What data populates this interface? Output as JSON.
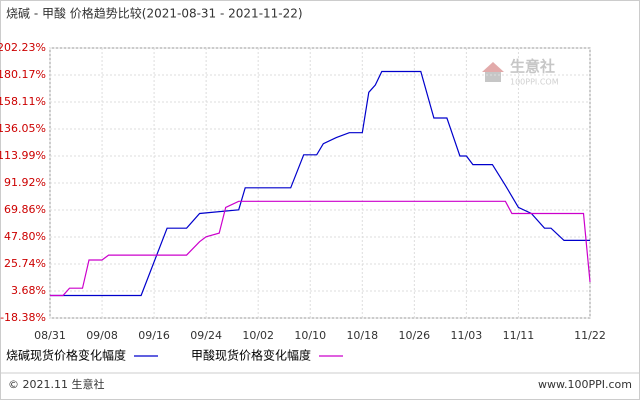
{
  "chart_data": {
    "type": "line",
    "title": "烧碱 - 甲酸 价格趋势比较(2021-08-31 - 2021-11-22)",
    "series": [
      {
        "name": "烧碱现货价格变化幅度",
        "color": "#0000cc",
        "x": [
          "08/31",
          "09/14",
          "09/18",
          "09/21",
          "09/23",
          "09/29",
          "09/30",
          "10/07",
          "10/09",
          "10/11",
          "10/12",
          "10/14",
          "10/16",
          "10/18",
          "10/19",
          "10/20",
          "10/21",
          "10/27",
          "10/29",
          "10/31",
          "11/02",
          "11/03",
          "11/04",
          "11/07",
          "11/09",
          "11/11",
          "11/13",
          "11/15",
          "11/16",
          "11/18",
          "11/22"
        ],
        "values": [
          0,
          0,
          55,
          55,
          67,
          70,
          88,
          88,
          115,
          115,
          124,
          129,
          133,
          133,
          166,
          172,
          183,
          183,
          145,
          145,
          114,
          114,
          107,
          107,
          90,
          72,
          67,
          55,
          55,
          45,
          45
        ]
      },
      {
        "name": "甲酸现货价格变化幅度",
        "color": "#cc00cc",
        "x": [
          "08/31",
          "09/02",
          "09/03",
          "09/05",
          "09/06",
          "09/08",
          "09/09",
          "09/21",
          "09/23",
          "09/24",
          "09/26",
          "09/27",
          "09/29",
          "11/09",
          "11/10",
          "11/21",
          "11/22"
        ],
        "values": [
          0,
          0,
          6,
          6,
          29,
          29,
          33,
          33,
          44,
          48,
          51,
          72,
          77,
          77,
          67,
          67,
          11
        ]
      }
    ],
    "xlim": [
      "08/31",
      "11/22"
    ],
    "xticks": [
      "08/31",
      "09/08",
      "09/16",
      "09/24",
      "10/02",
      "10/10",
      "10/18",
      "10/26",
      "11/03",
      "11/11",
      "11/22"
    ],
    "ylim": [
      -18.38,
      202.23
    ],
    "yticks": [
      {
        "value": -18.38,
        "label": "-18.38%"
      },
      {
        "value": 3.68,
        "label": "3.68%"
      },
      {
        "value": 25.74,
        "label": "25.74%"
      },
      {
        "value": 47.8,
        "label": "47.80%"
      },
      {
        "value": 69.86,
        "label": "69.86%"
      },
      {
        "value": 91.92,
        "label": "91.92%"
      },
      {
        "value": 113.99,
        "label": "113.99%"
      },
      {
        "value": 136.05,
        "label": "136.05%"
      },
      {
        "value": 158.11,
        "label": "158.11%"
      },
      {
        "value": 180.17,
        "label": "180.17%"
      },
      {
        "value": 202.23,
        "label": "202.23%"
      }
    ],
    "grid": true,
    "watermark": {
      "brand": "生意社",
      "site": "100PPI.COM"
    },
    "footer": {
      "left": "© 2021.11 生意社",
      "right": "www.100PPI.com"
    }
  }
}
